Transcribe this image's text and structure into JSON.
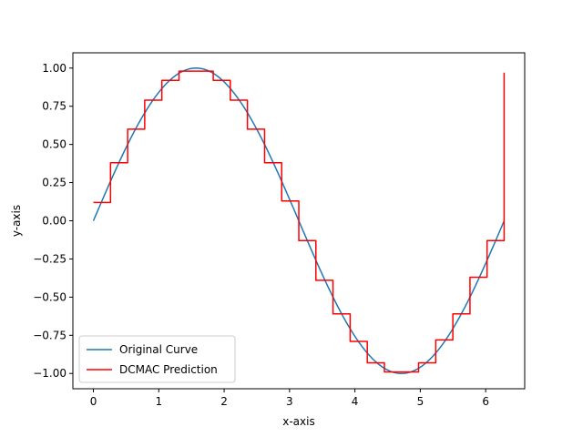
{
  "chart_data": {
    "type": "line",
    "title": "",
    "xlabel": "x-axis",
    "ylabel": "y-axis",
    "xlim": [
      -0.314,
      6.597
    ],
    "ylim": [
      -1.1,
      1.1
    ],
    "xticks": [
      0,
      1,
      2,
      3,
      4,
      5,
      6
    ],
    "yticks": [
      -1.0,
      -0.75,
      -0.5,
      -0.25,
      0.0,
      0.25,
      0.5,
      0.75,
      1.0
    ],
    "xtick_labels": [
      "0",
      "1",
      "2",
      "3",
      "4",
      "5",
      "6"
    ],
    "ytick_labels": [
      "−1.00",
      "−0.75",
      "−0.50",
      "−0.25",
      "0.00",
      "0.25",
      "0.50",
      "0.75",
      "1.00"
    ],
    "grid": false,
    "legend_position": "lower-left",
    "series": [
      {
        "name": "Original Curve",
        "color": "#1f77b4",
        "kind": "sine",
        "x_start": 0,
        "x_end": 6.283,
        "samples": 200
      },
      {
        "name": "DCMAC Prediction",
        "color": "#ff0000",
        "kind": "step",
        "x": [
          0,
          0.262,
          0.524,
          0.785,
          1.047,
          1.309,
          1.571,
          1.833,
          2.094,
          2.356,
          2.618,
          2.88,
          3.142,
          3.403,
          3.665,
          3.927,
          4.189,
          4.451,
          4.712,
          4.974,
          5.236,
          5.498,
          5.76,
          6.021,
          6.283
        ],
        "y": [
          0.12,
          0.38,
          0.6,
          0.79,
          0.92,
          0.98,
          0.98,
          0.92,
          0.79,
          0.6,
          0.38,
          0.13,
          -0.13,
          -0.39,
          -0.61,
          -0.79,
          -0.93,
          -0.99,
          -0.99,
          -0.93,
          -0.78,
          -0.61,
          -0.37,
          -0.13,
          0.97
        ]
      }
    ]
  }
}
